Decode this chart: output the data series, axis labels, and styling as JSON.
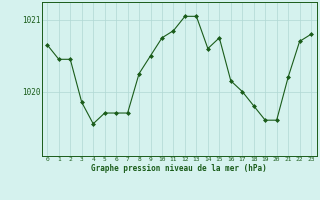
{
  "hours": [
    0,
    1,
    2,
    3,
    4,
    5,
    6,
    7,
    8,
    9,
    10,
    11,
    12,
    13,
    14,
    15,
    16,
    17,
    18,
    19,
    20,
    21,
    22,
    23
  ],
  "pressure": [
    1020.65,
    1020.45,
    1020.45,
    1019.85,
    1019.55,
    1019.7,
    1019.7,
    1019.7,
    1020.25,
    1020.5,
    1020.75,
    1020.85,
    1021.05,
    1021.05,
    1020.6,
    1020.75,
    1020.15,
    1020.0,
    1019.8,
    1019.6,
    1019.6,
    1020.2,
    1020.7,
    1020.8
  ],
  "line_color": "#1a5c1a",
  "marker": "D",
  "marker_size": 2.0,
  "bg_color": "#d5f2ee",
  "grid_color": "#b0d8d4",
  "xlabel": "Graphe pression niveau de la mer (hPa)",
  "yticks": [
    1020,
    1021
  ],
  "ytick_labels": [
    "1020",
    "1021"
  ],
  "ylim_min": 1019.1,
  "ylim_max": 1021.25,
  "figsize": [
    3.2,
    2.0
  ],
  "dpi": 100
}
